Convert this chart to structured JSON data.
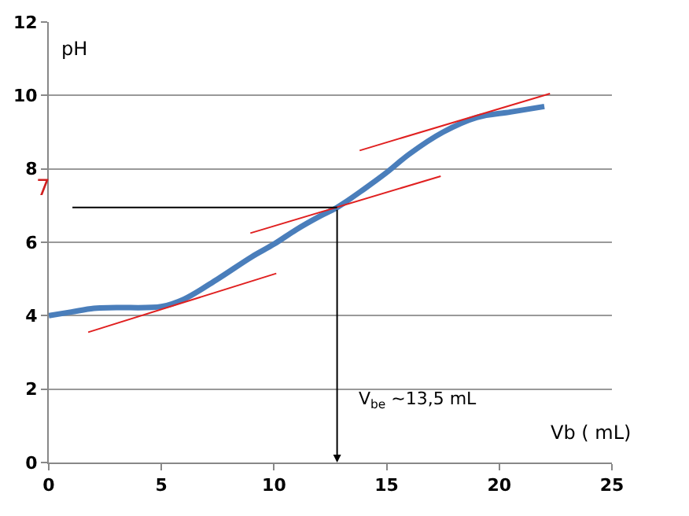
{
  "chart_data": {
    "type": "line",
    "xlabel": "Vb ( mL)",
    "ylabel": "pH",
    "xlim": [
      0,
      25
    ],
    "xticks": [
      0,
      5,
      10,
      15,
      20,
      25
    ],
    "ylim": [
      0,
      12
    ],
    "yticks": [
      0,
      2,
      4,
      6,
      8,
      10,
      12
    ],
    "grid": "y",
    "series": [
      {
        "color": "#4a7ebb",
        "x": [
          0,
          1,
          2,
          3,
          5,
          6,
          7.5,
          9,
          10,
          11,
          12,
          12.8,
          14,
          15,
          16,
          17.5,
          19,
          20.5,
          22
        ],
        "values": [
          4.0,
          4.1,
          4.2,
          4.22,
          4.25,
          4.45,
          5.0,
          5.6,
          5.95,
          6.35,
          6.7,
          6.95,
          7.45,
          7.9,
          8.4,
          9.0,
          9.4,
          9.55,
          9.7
        ]
      },
      {
        "color": "#e02020",
        "x": [
          1.75,
          10.1
        ],
        "values": [
          3.55,
          5.15
        ]
      },
      {
        "color": "#e02020",
        "x": [
          8.95,
          17.4
        ],
        "values": [
          6.25,
          7.8
        ]
      },
      {
        "color": "#e02020",
        "x": [
          13.8,
          22.25
        ],
        "values": [
          8.5,
          10.05
        ]
      },
      {
        "color": "#000000",
        "x": [
          1.05,
          12.8
        ],
        "values": [
          6.95,
          6.95
        ]
      }
    ],
    "annotations": [
      "7",
      "V$_{be}$ ~13,5 mL"
    ]
  }
}
